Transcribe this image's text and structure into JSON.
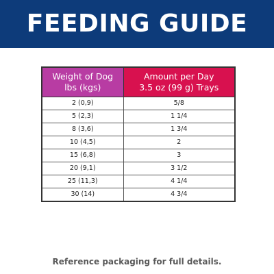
{
  "banner": {
    "title": "FEEDING GUIDE",
    "background": "#0d3b7a"
  },
  "table": {
    "header_colors": [
      "#b83ca3",
      "#d8114f"
    ],
    "headers": [
      {
        "line1": "Weight of Dog",
        "line2": "lbs (kgs)"
      },
      {
        "line1": "Amount per Day",
        "line2": "3.5 oz (99 g) Trays"
      }
    ],
    "rows": [
      {
        "weight": "2 (0,9)",
        "amount": "5/8"
      },
      {
        "weight": "5 (2,3)",
        "amount": "1 1/4"
      },
      {
        "weight": "8 (3,6)",
        "amount": "1 3/4"
      },
      {
        "weight": "10 (4,5)",
        "amount": "2"
      },
      {
        "weight": "15 (6,8)",
        "amount": "3"
      },
      {
        "weight": "20 (9,1)",
        "amount": "3 1/2"
      },
      {
        "weight": "25 (11,3)",
        "amount": "4 1/4"
      },
      {
        "weight": "30 (14)",
        "amount": "4 3/4"
      }
    ]
  },
  "footer": {
    "note": "Reference packaging for full details."
  }
}
